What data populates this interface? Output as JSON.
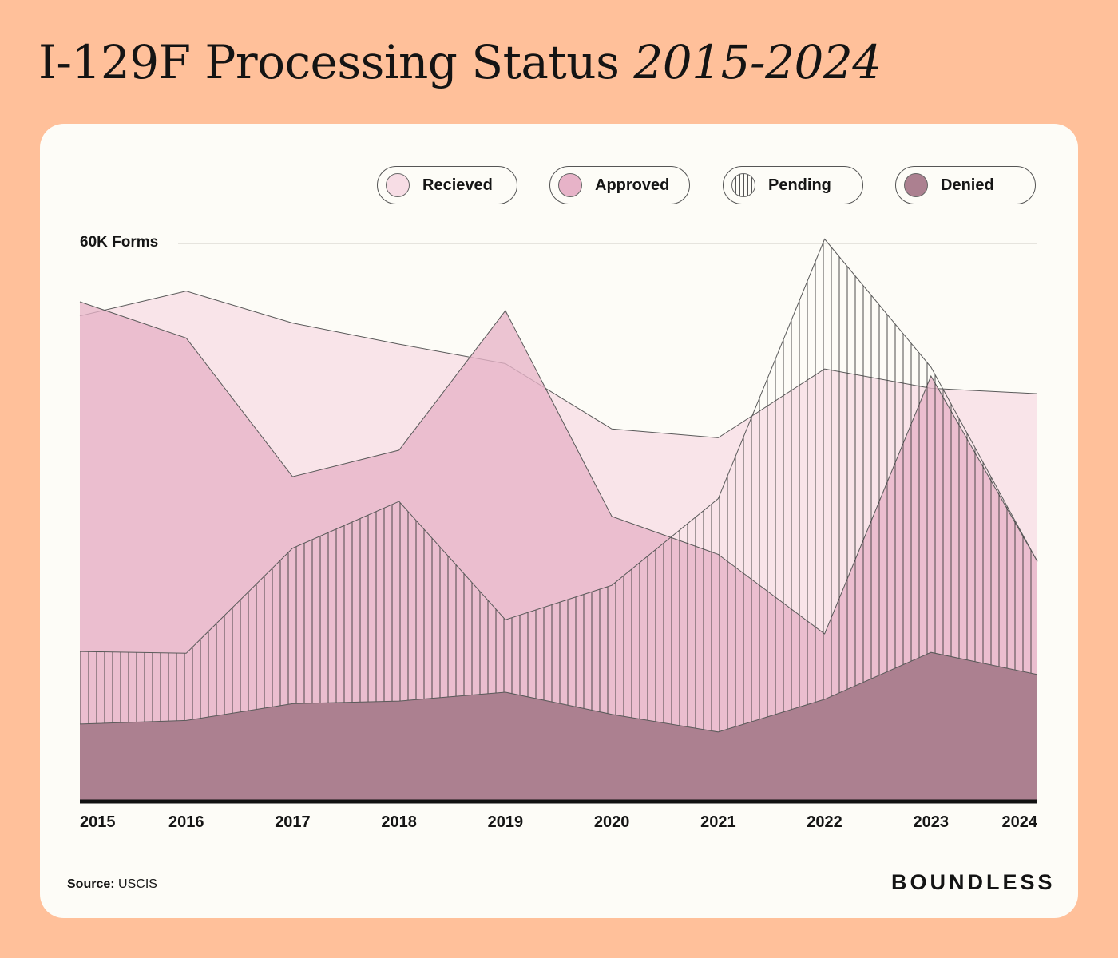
{
  "title_main": "I-129F Processing Status ",
  "title_years": "2015-2024",
  "legend": [
    {
      "label": "Recieved",
      "color": "#F7DDE5",
      "pattern": "solid"
    },
    {
      "label": "Approved",
      "color": "#E7B3C8",
      "pattern": "solid"
    },
    {
      "label": "Pending",
      "color": "#FDFCF7",
      "pattern": "vertical-lines"
    },
    {
      "label": "Denied",
      "color": "#AC8090",
      "pattern": "solid"
    }
  ],
  "ylabel": "60K Forms",
  "source_label": "Source:",
  "source_value": "USCIS",
  "brand": "BOUNDLESS",
  "chart_data": {
    "type": "area",
    "title": "I-129F Processing Status 2015-2024",
    "categories": [
      "2015",
      "2016",
      "2017",
      "2018",
      "2019",
      "2020",
      "2021",
      "2022",
      "2023",
      "2024"
    ],
    "ylim": [
      0,
      63000
    ],
    "ylabel": "60K Forms",
    "series": [
      {
        "name": "Recieved",
        "color": "#F7DDE5",
        "values": [
          54800,
          57600,
          54000,
          51600,
          49400,
          42000,
          41000,
          48800,
          46600,
          46000
        ]
      },
      {
        "name": "Approved",
        "color": "#E7B3C8",
        "values": [
          56400,
          52300,
          36600,
          39600,
          55400,
          32100,
          27800,
          18800,
          48000,
          27000
        ]
      },
      {
        "name": "Pending",
        "color": "#FDFCF7",
        "pattern": "vertical-lines",
        "values": [
          16800,
          16600,
          28500,
          33800,
          20400,
          24300,
          34100,
          63500,
          49000,
          27000
        ]
      },
      {
        "name": "Denied",
        "color": "#AC8090",
        "values": [
          8600,
          9000,
          10900,
          11200,
          12200,
          9700,
          7700,
          11400,
          16700,
          14200
        ]
      }
    ]
  }
}
